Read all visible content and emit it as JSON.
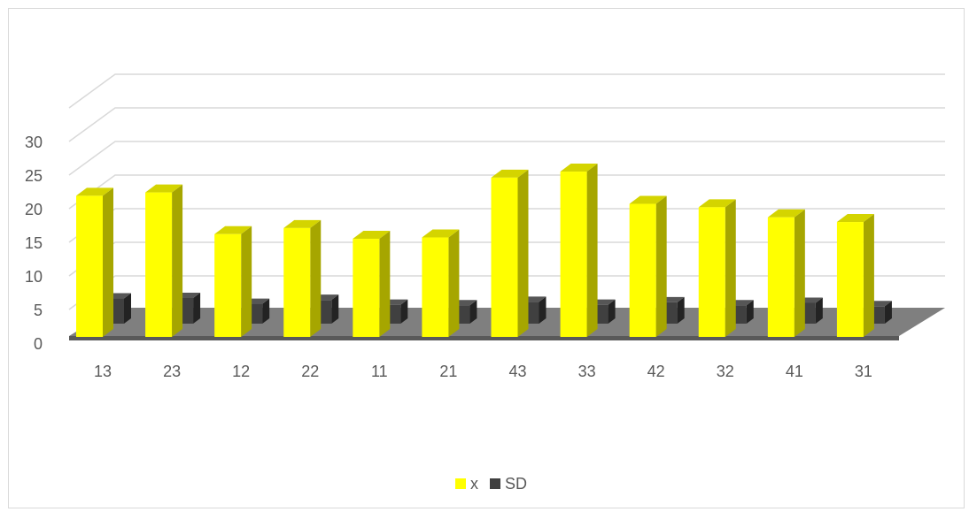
{
  "chart_data": {
    "type": "bar",
    "style": "3d-clustered-column",
    "categories": [
      "13",
      "23",
      "12",
      "22",
      "11",
      "21",
      "43",
      "33",
      "42",
      "32",
      "41",
      "31"
    ],
    "series": [
      {
        "name": "x",
        "color": "#ffff00",
        "values": [
          21,
          21.5,
          15.3,
          16.2,
          14.6,
          14.8,
          23.7,
          24.6,
          19.8,
          19.3,
          17.8,
          17.1
        ]
      },
      {
        "name": "SD",
        "color": "#404040",
        "values": [
          5.2,
          5.3,
          4.1,
          4.9,
          3.9,
          3.8,
          4.5,
          3.9,
          4.4,
          3.8,
          4.3,
          3.6
        ]
      }
    ],
    "yticks": [
      "0",
      "5",
      "10",
      "15",
      "20",
      "25",
      "30"
    ],
    "ylim": [
      0,
      30
    ],
    "grid": true,
    "legend_position": "bottom"
  }
}
